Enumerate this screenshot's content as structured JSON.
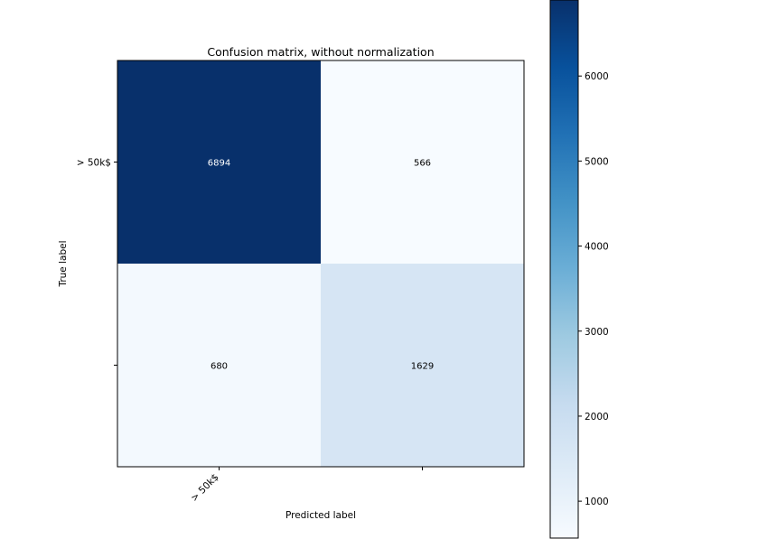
{
  "chart_data": {
    "type": "heatmap",
    "title": "Confusion matrix, without normalization",
    "xlabel": "Predicted label",
    "ylabel": "True label",
    "x_tick_labels": [
      " > 50k$",
      ""
    ],
    "y_tick_labels": [
      " > 50k$",
      ""
    ],
    "matrix": [
      [
        6894,
        566
      ],
      [
        680,
        1629
      ]
    ],
    "colormap": "Blues",
    "colorbar": {
      "min": 566,
      "max": 6894,
      "ticks": [
        1000,
        2000,
        3000,
        4000,
        5000,
        6000
      ]
    },
    "colors": {
      "text_light": "#ffffff",
      "text_dark": "#000000",
      "axis": "#000000"
    }
  }
}
